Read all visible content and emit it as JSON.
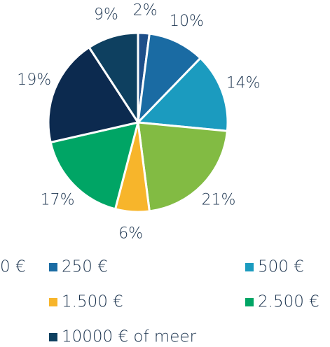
{
  "chart_data": {
    "type": "pie",
    "categories": [
      "0 €",
      "250 €",
      "500 €",
      null,
      "1.500 €",
      "2.500 €",
      null,
      "10000 € of meer"
    ],
    "values": [
      2,
      10,
      14,
      21,
      6,
      17,
      19,
      9
    ],
    "value_labels": [
      "2%",
      "10%",
      "14%",
      "21%",
      "6%",
      "17%",
      "19%",
      "9%"
    ],
    "colors": [
      "#1d4e89",
      "#1a6ba3",
      "#1b9bbf",
      "#82bb43",
      "#f7b52b",
      "#00a565",
      "#0c2a4f",
      "#0e4060"
    ],
    "legend": "bottom"
  }
}
